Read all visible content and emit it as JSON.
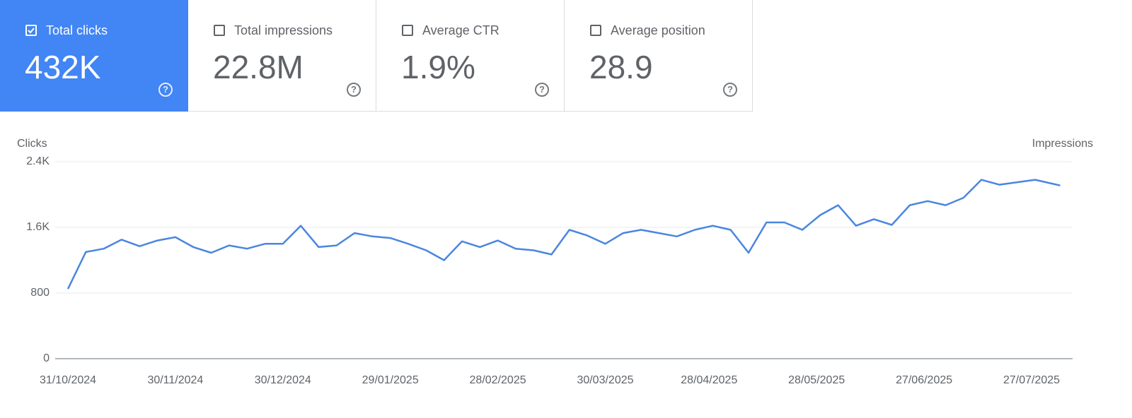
{
  "cards": [
    {
      "label": "Total clicks",
      "value": "432K",
      "selected": true
    },
    {
      "label": "Total impressions",
      "value": "22.8M",
      "selected": false
    },
    {
      "label": "Average CTR",
      "value": "1.9%",
      "selected": false
    },
    {
      "label": "Average position",
      "value": "28.9",
      "selected": false
    }
  ],
  "chart_data": {
    "type": "line",
    "y_label": "Clicks",
    "y2_label": "Impressions",
    "color": "#4a86e0",
    "grid": true,
    "ylim": [
      0,
      2400
    ],
    "yticks": [
      0,
      800,
      {
        "value": 1600,
        "label": "1.6K"
      },
      {
        "value": 2400,
        "label": "2.4K"
      }
    ],
    "xticks": [
      "31/10/2024",
      "30/11/2024",
      "30/12/2024",
      "29/01/2025",
      "28/02/2025",
      "30/03/2025",
      "28/04/2025",
      "28/05/2025",
      "27/06/2025",
      "27/07/2025"
    ],
    "x": [
      "31/10/2024",
      "05/11/2024",
      "10/11/2024",
      "15/11/2024",
      "20/11/2024",
      "25/11/2024",
      "30/11/2024",
      "05/12/2024",
      "10/12/2024",
      "15/12/2024",
      "20/12/2024",
      "25/12/2024",
      "30/12/2024",
      "04/01/2025",
      "09/01/2025",
      "14/01/2025",
      "19/01/2025",
      "24/01/2025",
      "29/01/2025",
      "03/02/2025",
      "08/02/2025",
      "13/02/2025",
      "18/02/2025",
      "23/02/2025",
      "28/02/2025",
      "05/03/2025",
      "10/03/2025",
      "15/03/2025",
      "20/03/2025",
      "25/03/2025",
      "30/03/2025",
      "04/04/2025",
      "09/04/2025",
      "14/04/2025",
      "19/04/2025",
      "24/04/2025",
      "29/04/2025",
      "04/05/2025",
      "09/05/2025",
      "14/05/2025",
      "19/05/2025",
      "24/05/2025",
      "29/05/2025",
      "03/06/2025",
      "08/06/2025",
      "13/06/2025",
      "18/06/2025",
      "23/06/2025",
      "28/06/2025",
      "03/07/2025",
      "08/07/2025",
      "13/07/2025",
      "18/07/2025",
      "23/07/2025",
      "28/07/2025",
      "02/08/2025",
      "04/08/2025"
    ],
    "values": [
      850,
      1300,
      1340,
      1450,
      1370,
      1440,
      1480,
      1360,
      1290,
      1380,
      1340,
      1400,
      1400,
      1620,
      1360,
      1380,
      1530,
      1490,
      1470,
      1400,
      1320,
      1200,
      1430,
      1360,
      1440,
      1340,
      1320,
      1270,
      1570,
      1500,
      1400,
      1530,
      1570,
      1530,
      1490,
      1570,
      1620,
      1570,
      1290,
      1660,
      1660,
      1570,
      1750,
      1870,
      1620,
      1700,
      1630,
      1870,
      1920,
      1870,
      1960,
      2180,
      2120,
      2150,
      2180,
      2130,
      2110
    ]
  }
}
